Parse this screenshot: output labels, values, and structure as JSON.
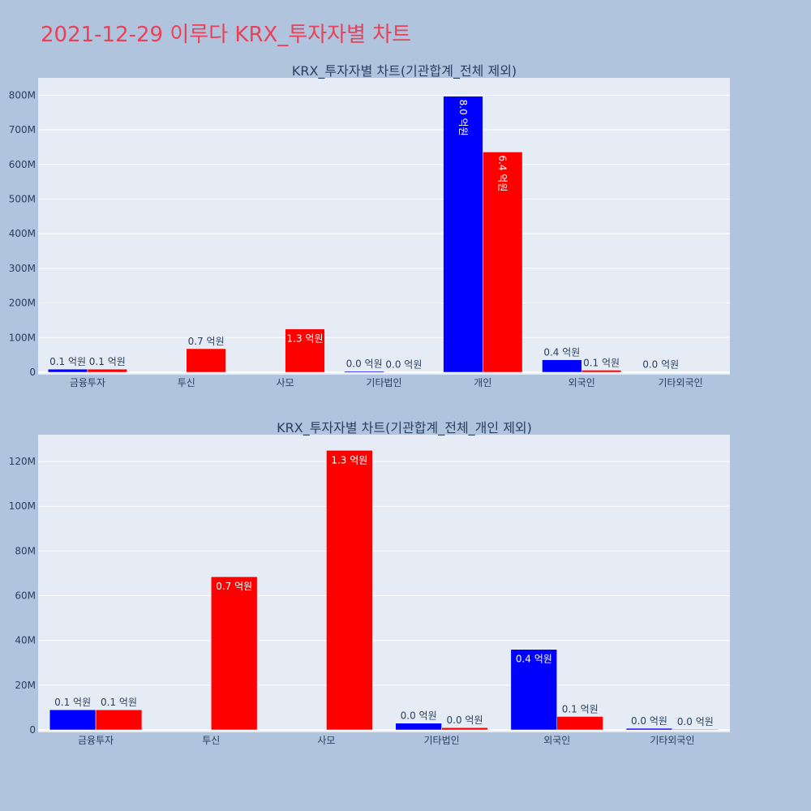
{
  "page_title": "2021-12-29 이루다 KRX_투자자별 차트",
  "colors": {
    "background": "#b0c4de",
    "plot_bg": "#e5ecf6",
    "title": "#e8425a",
    "series_buy": "#0000ff",
    "series_sell": "#ff0000"
  },
  "chart_data": [
    {
      "type": "bar",
      "title": "KRX_투자자별 차트(기관합계_전체 제외)",
      "categories": [
        "금융투자",
        "투신",
        "사모",
        "기타법인",
        "개인",
        "외국인",
        "기타외국인"
      ],
      "y_ticks": [
        "0",
        "100M",
        "200M",
        "300M",
        "400M",
        "500M",
        "600M",
        "700M",
        "800M"
      ],
      "ylim": [
        0,
        850000000
      ],
      "grid": true,
      "series": [
        {
          "color": "#0000ff",
          "values": [
            9000000,
            0,
            0,
            3000000,
            797000000,
            36000000,
            700000
          ],
          "labels": [
            "0.1 억원",
            "",
            "",
            "0.0 억원",
            "8.0 억원",
            "0.4 억원",
            "0.0 억원"
          ]
        },
        {
          "color": "#ff0000",
          "values": [
            9000000,
            68000000,
            125000000,
            1000000,
            636000000,
            6000000,
            0
          ],
          "labels": [
            "0.1 억원",
            "0.7 억원",
            "1.3 억원",
            "0.0 억원",
            "6.4 억원",
            "0.1 억원",
            ""
          ]
        }
      ]
    },
    {
      "type": "bar",
      "title": "KRX_투자자별 차트(기관합계_전체_개인 제외)",
      "categories": [
        "금융투자",
        "투신",
        "사모",
        "기타법인",
        "외국인",
        "기타외국인"
      ],
      "y_ticks": [
        "0",
        "20M",
        "40M",
        "60M",
        "80M",
        "100M",
        "120M"
      ],
      "ylim": [
        0,
        132000000
      ],
      "grid": true,
      "series": [
        {
          "color": "#0000ff",
          "values": [
            9000000,
            0,
            0,
            3000000,
            36000000,
            700000
          ],
          "labels": [
            "0.1 억원",
            "",
            "",
            "0.0 억원",
            "0.4 억원",
            "0.0 억원"
          ]
        },
        {
          "color": "#ff0000",
          "values": [
            9000000,
            68500000,
            125000000,
            1000000,
            6000000,
            300000
          ],
          "labels": [
            "0.1 억원",
            "0.7 억원",
            "1.3 억원",
            "0.0 억원",
            "0.1 억원",
            "0.0 억원"
          ]
        }
      ]
    }
  ]
}
